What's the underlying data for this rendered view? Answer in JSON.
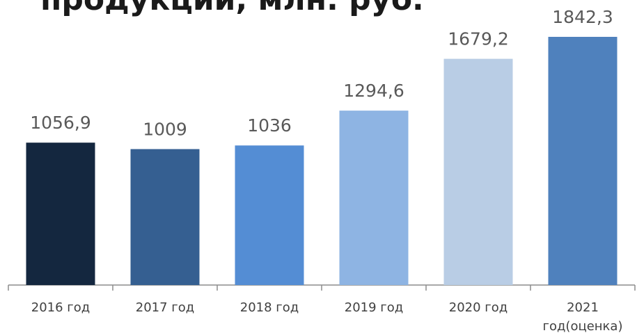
{
  "chart_data": {
    "type": "bar",
    "title": "продукции, млн. руб.",
    "categories": [
      "2016 год",
      "2017 год",
      "2018 год",
      "2019 год",
      "2020 год",
      "2021 год(оценка)"
    ],
    "values": [
      1056.9,
      1009,
      1036,
      1294.6,
      1679.2,
      1842.3
    ],
    "value_labels": [
      "1056,9",
      "1009",
      "1036",
      "1294,6",
      "1679,2",
      "1842,3"
    ],
    "colors": [
      "#14273f",
      "#355f91",
      "#548dd4",
      "#8eb4e3",
      "#b9cde5",
      "#4f81bd"
    ]
  }
}
